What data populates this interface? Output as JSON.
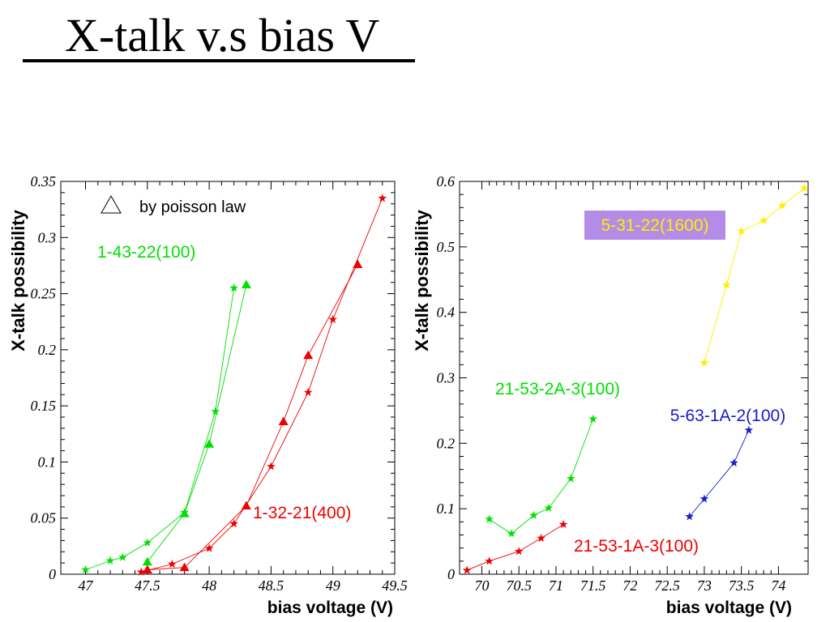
{
  "slide": {
    "title": "X-talk v.s bias V"
  },
  "colors": {
    "green": "#00e000",
    "red": "#ee0000",
    "yellow": "#ffee00",
    "blue": "#1a1ad0",
    "label_box": "#b58be8"
  },
  "chart_data": [
    {
      "type": "scatter",
      "xlabel": "bias voltage (V)",
      "ylabel": "X-talk possibility",
      "xlim": [
        46.8,
        49.5
      ],
      "ylim": [
        0,
        0.35
      ],
      "xticks": [
        47,
        47.5,
        48,
        48.5,
        49,
        49.5
      ],
      "xtick_labels": [
        "47",
        "47.5",
        "48",
        "48.5",
        "49",
        "49.5"
      ],
      "yticks": [
        0,
        0.05,
        0.1,
        0.15,
        0.2,
        0.25,
        0.3,
        0.35
      ],
      "ytick_labels": [
        "0",
        "0.05",
        "0.1",
        "0.15",
        "0.2",
        "0.25",
        "0.3",
        "0.35"
      ],
      "grid": false,
      "legend": {
        "marker": "triangle",
        "text": "by poisson law",
        "placement": "top-left"
      },
      "series": [
        {
          "name": "1-43-22(100)",
          "color_key": "green",
          "marker": "star",
          "points": [
            [
              47.0,
              0.004
            ],
            [
              47.2,
              0.012
            ],
            [
              47.3,
              0.015
            ],
            [
              47.5,
              0.028
            ],
            [
              47.8,
              0.055
            ],
            [
              48.05,
              0.145
            ],
            [
              48.2,
              0.255
            ]
          ]
        },
        {
          "color_key": "green",
          "marker": "triangle",
          "points": [
            [
              47.5,
              0.011
            ],
            [
              47.8,
              0.054
            ],
            [
              48.0,
              0.116
            ],
            [
              48.3,
              0.258
            ]
          ]
        },
        {
          "name": "1-32-21(400)",
          "color_key": "red",
          "marker": "star",
          "points": [
            [
              47.45,
              0.002
            ],
            [
              47.7,
              0.009
            ],
            [
              48.0,
              0.023
            ],
            [
              48.2,
              0.045
            ],
            [
              48.5,
              0.096
            ],
            [
              48.8,
              0.162
            ],
            [
              49.0,
              0.227
            ],
            [
              49.4,
              0.335
            ]
          ]
        },
        {
          "color_key": "red",
          "marker": "triangle",
          "points": [
            [
              47.5,
              0.004
            ],
            [
              47.8,
              0.006
            ],
            [
              48.3,
              0.061
            ],
            [
              48.6,
              0.136
            ],
            [
              48.8,
              0.195
            ],
            [
              49.2,
              0.276
            ]
          ]
        }
      ]
    },
    {
      "type": "scatter",
      "xlabel": "bias voltage (V)",
      "ylabel": "X-talk possibility",
      "xlim": [
        69.7,
        74.4
      ],
      "ylim": [
        0,
        0.6
      ],
      "xticks": [
        70,
        70.5,
        71,
        71.5,
        72,
        72.5,
        73,
        73.5,
        74
      ],
      "xtick_labels": [
        "70",
        "70.5",
        "71",
        "71.5",
        "72",
        "72.5",
        "73",
        "73.5",
        "74"
      ],
      "yticks": [
        0,
        0.1,
        0.2,
        0.3,
        0.4,
        0.5,
        0.6
      ],
      "ytick_labels": [
        "0",
        "0.1",
        "0.2",
        "0.3",
        "0.4",
        "0.5",
        "0.6"
      ],
      "grid": false,
      "series": [
        {
          "name": "5-31-22(1600)",
          "color_key": "yellow",
          "marker": "star",
          "label_boxed": true,
          "points": [
            [
              73.0,
              0.323
            ],
            [
              73.3,
              0.442
            ],
            [
              73.5,
              0.524
            ],
            [
              73.8,
              0.54
            ],
            [
              74.05,
              0.563
            ],
            [
              74.35,
              0.59
            ]
          ]
        },
        {
          "name": "21-53-2A-3(100)",
          "color_key": "green",
          "marker": "star",
          "points": [
            [
              70.1,
              0.084
            ],
            [
              70.4,
              0.062
            ],
            [
              70.7,
              0.09
            ],
            [
              70.9,
              0.101
            ],
            [
              71.2,
              0.146
            ],
            [
              71.5,
              0.237
            ]
          ]
        },
        {
          "name": "5-63-1A-2(100)",
          "color_key": "blue",
          "marker": "star",
          "points": [
            [
              72.8,
              0.088
            ],
            [
              73.0,
              0.115
            ],
            [
              73.4,
              0.17
            ],
            [
              73.6,
              0.22
            ]
          ]
        },
        {
          "name": "21-53-1A-3(100)",
          "color_key": "red",
          "marker": "star",
          "points": [
            [
              69.8,
              0.006
            ],
            [
              70.1,
              0.02
            ],
            [
              70.5,
              0.035
            ],
            [
              70.8,
              0.055
            ],
            [
              71.1,
              0.076
            ]
          ]
        }
      ]
    }
  ]
}
